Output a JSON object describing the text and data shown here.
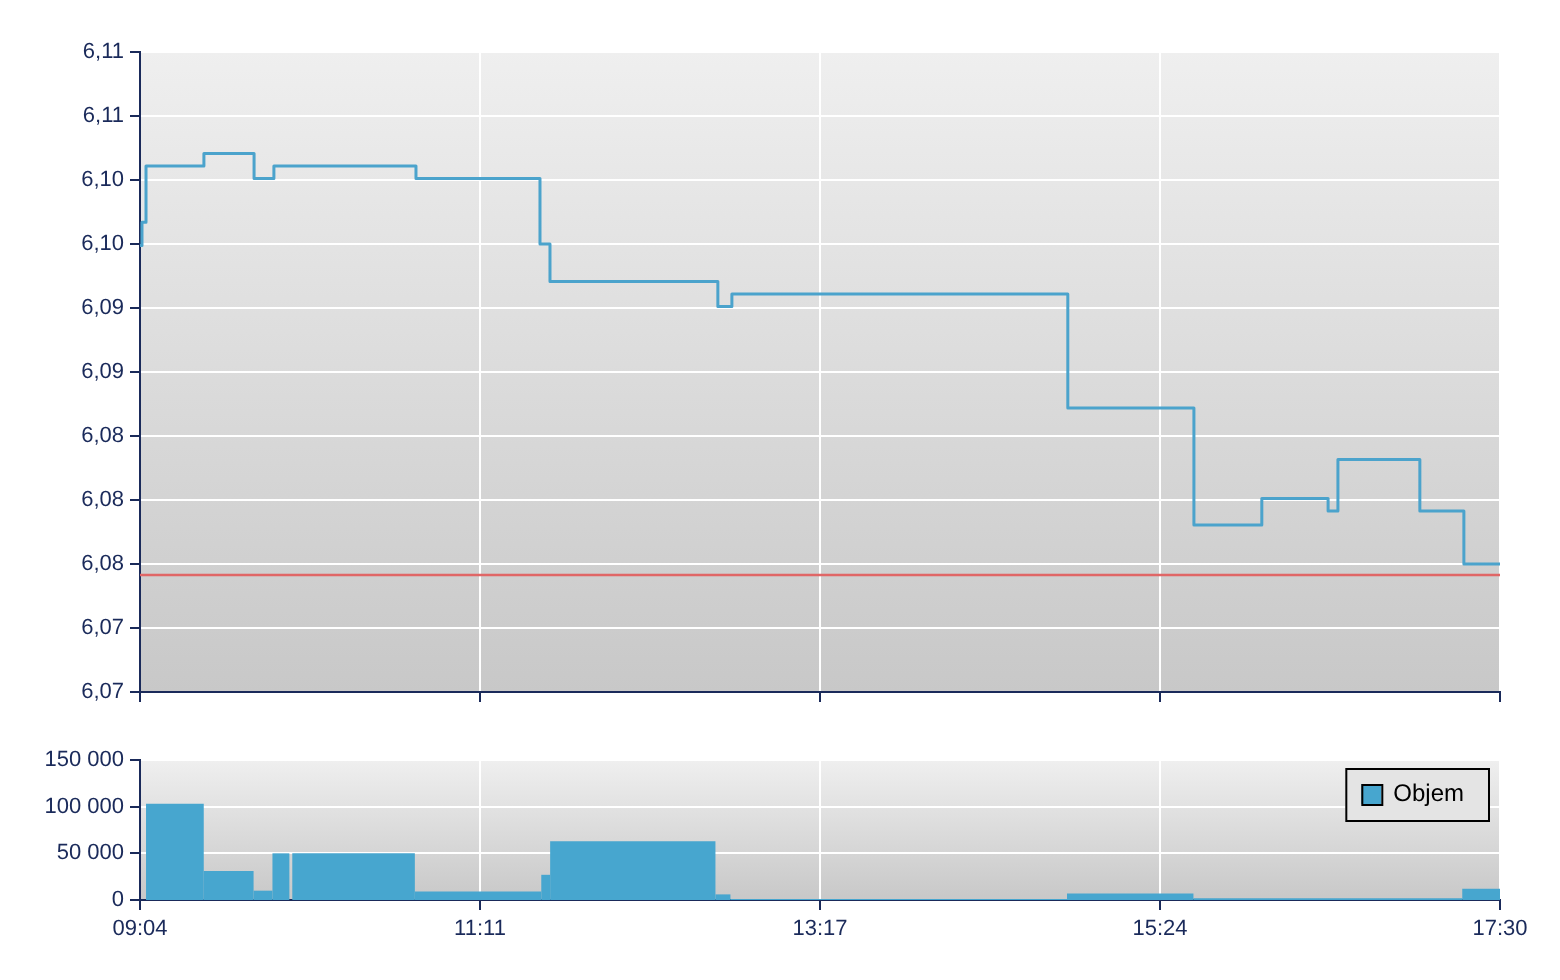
{
  "chart_data": [
    {
      "type": "step",
      "x": [
        9.0667,
        9.079,
        9.104,
        9.463,
        9.774,
        9.897,
        10.778,
        11.547,
        11.609,
        12.65,
        12.737,
        14.82,
        15.602,
        16.023,
        16.434,
        16.495,
        17.003,
        17.276,
        17.5
      ],
      "values": [
        6.0969,
        6.0984,
        6.102,
        6.1028,
        6.1012,
        6.102,
        6.1012,
        6.097,
        6.0946,
        6.093,
        6.0938,
        6.0865,
        6.079,
        6.0807,
        6.0799,
        6.0832,
        6.0799,
        6.0765,
        6.0765
      ],
      "color": "#4ba3cc",
      "marker": "none",
      "grid": true,
      "tick_labels": "y",
      "xlim": [
        9.0667,
        17.5
      ],
      "xticks": [
        {
          "value": 9.0667,
          "label": null
        },
        {
          "value": 11.175,
          "label": null
        },
        {
          "value": 13.283,
          "label": null
        },
        {
          "value": 15.392,
          "label": null
        },
        {
          "value": 17.5,
          "label": null
        }
      ],
      "ylim": [
        6.0683,
        6.1093
      ],
      "yticks": [
        {
          "value": 6.0683,
          "label": "6,07"
        },
        {
          "value": 6.0724,
          "label": "6,07"
        },
        {
          "value": 6.0765,
          "label": "6,08"
        },
        {
          "value": 6.0806,
          "label": "6,08"
        },
        {
          "value": 6.0847,
          "label": "6,08"
        },
        {
          "value": 6.0888,
          "label": "6,09"
        },
        {
          "value": 6.0929,
          "label": "6,09"
        },
        {
          "value": 6.097,
          "label": "6,10"
        },
        {
          "value": 6.1011,
          "label": "6,10"
        },
        {
          "value": 6.1052,
          "label": "6,11"
        },
        {
          "value": 6.1093,
          "label": "6,11"
        }
      ],
      "ref_lines": [
        {
          "axis": "y",
          "value": 6.0758,
          "color": "#e06666"
        }
      ]
    },
    {
      "type": "histogram",
      "bins": [
        9.104,
        9.462,
        9.771,
        9.888,
        9.993,
        10.011,
        10.771,
        11.555,
        11.61,
        12.635,
        12.728,
        14.815,
        15.599,
        17.266,
        17.5
      ],
      "series": [
        {
          "name": "Objem",
          "color": "#47a6cf",
          "values": [
            103000,
            31000,
            10000,
            50000,
            0,
            50000,
            9000,
            27000,
            63000,
            6000,
            1000,
            7000,
            2000,
            12000
          ]
        }
      ],
      "legend": "top right",
      "grid": true,
      "xlim": [
        9.0667,
        17.5
      ],
      "xticks": [
        {
          "value": 9.0667,
          "label": "09:04"
        },
        {
          "value": 11.175,
          "label": "11:11"
        },
        {
          "value": 13.283,
          "label": "13:17"
        },
        {
          "value": 15.392,
          "label": "15:24"
        },
        {
          "value": 17.5,
          "label": "17:30"
        }
      ],
      "ylim": [
        0,
        150000
      ],
      "yticks": [
        0,
        {
          "value": 50000,
          "label": "50 000"
        },
        {
          "value": 100000,
          "label": "100 000"
        },
        {
          "value": 150000,
          "label": "150 000"
        }
      ]
    }
  ]
}
